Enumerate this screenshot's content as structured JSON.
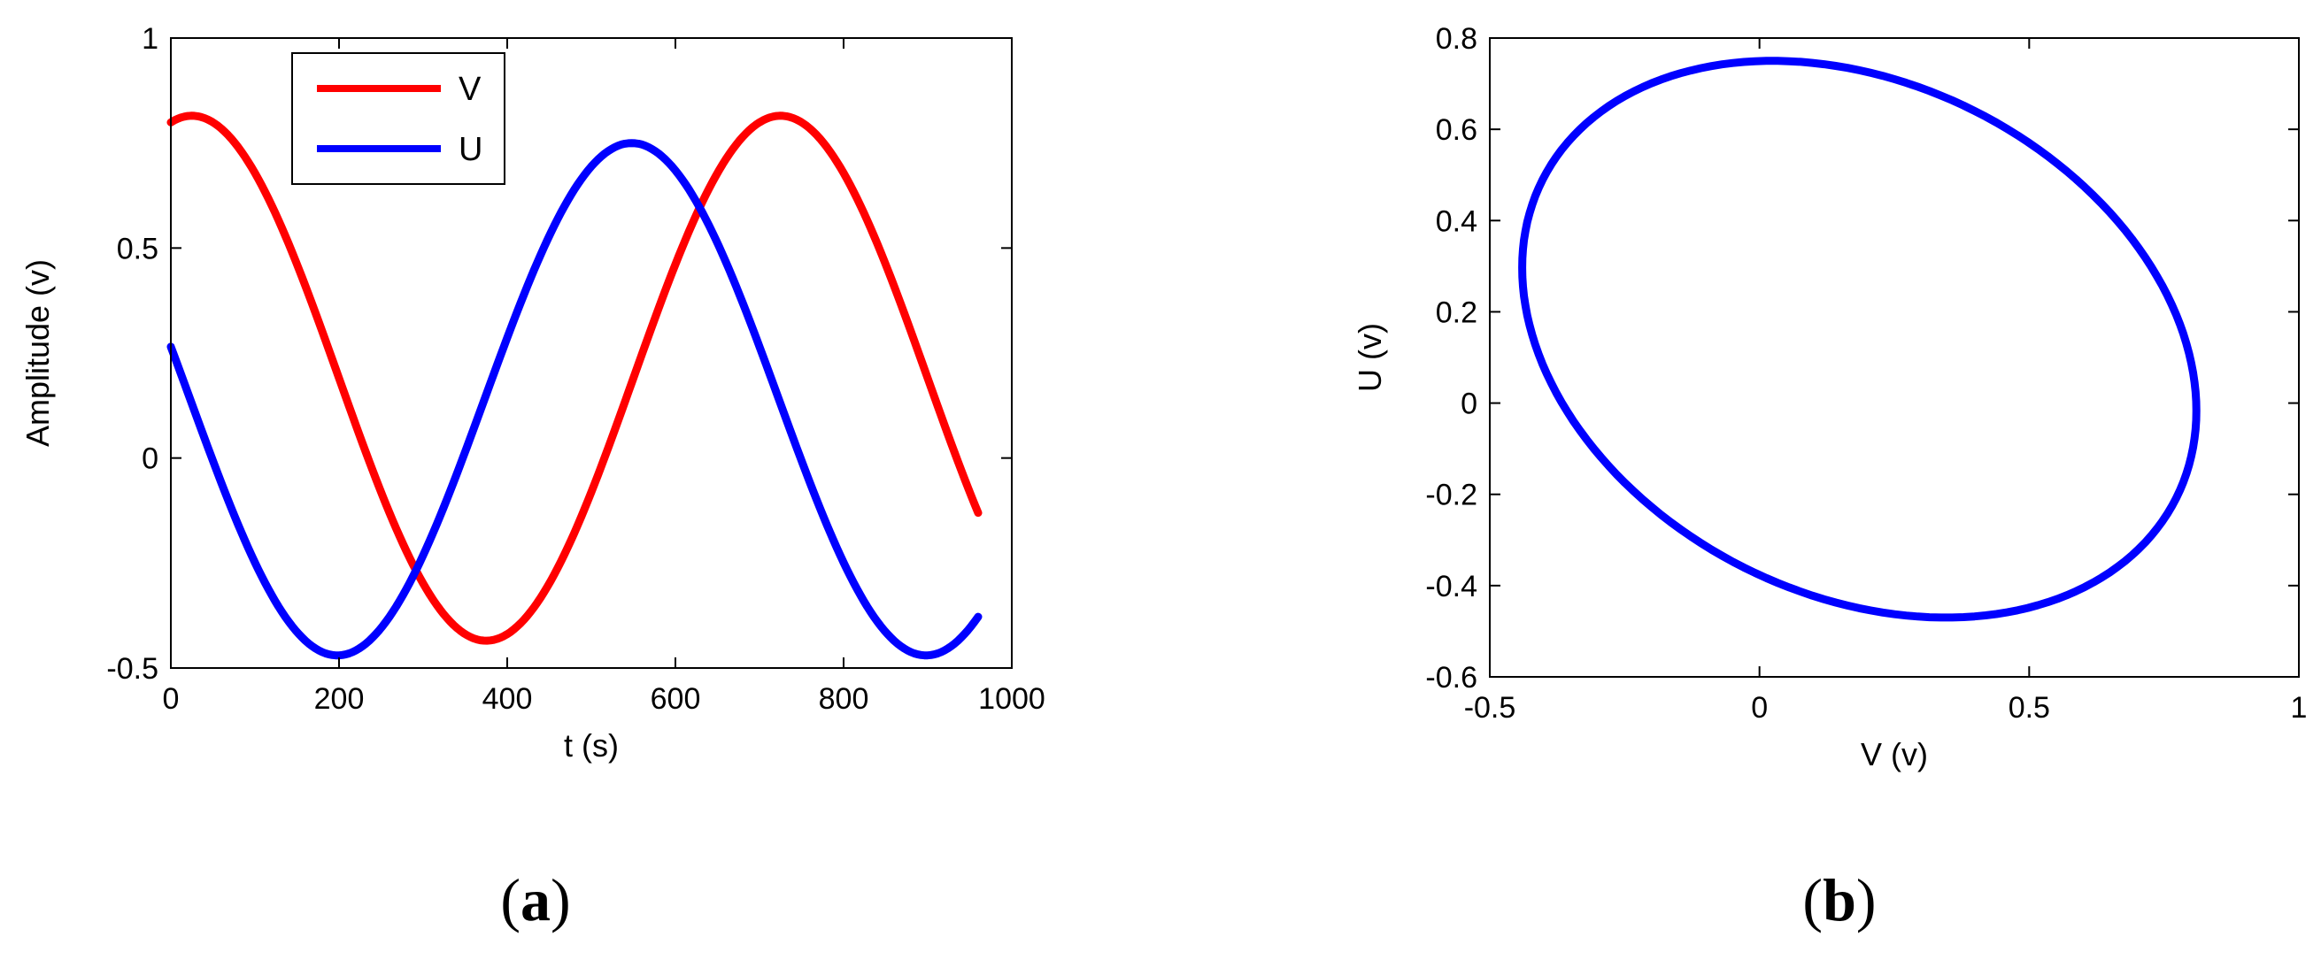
{
  "chart_data": [
    {
      "id": "a",
      "type": "line",
      "panel_label": "a",
      "xlabel": "t (s)",
      "ylabel": "Amplitude (v)",
      "xlim": [
        0,
        1000
      ],
      "ylim": [
        -0.5,
        1
      ],
      "xticks": [
        "0",
        "200",
        "400",
        "600",
        "800",
        "1000"
      ],
      "yticks": [
        "-0.5",
        "0",
        "0.5",
        "1"
      ],
      "xtick_values": [
        0,
        200,
        400,
        600,
        800,
        1000
      ],
      "ytick_values": [
        -0.5,
        0,
        0.5,
        1
      ],
      "grid": false,
      "legend_position": "top-left",
      "t_range": [
        0,
        960
      ],
      "period": 700,
      "series": [
        {
          "name": "V",
          "color": "#ff0000",
          "center": 0.19,
          "amplitude": 0.625,
          "peak_t": 25
        },
        {
          "name": "U",
          "color": "#0000ff",
          "center": 0.14,
          "amplitude": 0.61,
          "peak_t": 548
        }
      ]
    },
    {
      "id": "b",
      "type": "line",
      "panel_label": "b",
      "xlabel": "V (v)",
      "ylabel": "U (v)",
      "xlim": [
        -0.5,
        1
      ],
      "ylim": [
        -0.6,
        0.8
      ],
      "xticks": [
        "-0.5",
        "0",
        "0.5",
        "1"
      ],
      "yticks": [
        "-0.6",
        "-0.4",
        "-0.2",
        "0",
        "0.2",
        "0.4",
        "0.6",
        "0.8"
      ],
      "xtick_values": [
        -0.5,
        0,
        0.5,
        1
      ],
      "ytick_values": [
        -0.6,
        -0.4,
        -0.2,
        0,
        0.2,
        0.4,
        0.6,
        0.8
      ],
      "grid": false,
      "series": [
        {
          "name": "",
          "color": "#0000ff",
          "description": "closed loop of U versus V",
          "x_range": [
            -0.44,
            0.81
          ],
          "y_range": [
            -0.47,
            0.75
          ]
        }
      ]
    }
  ]
}
